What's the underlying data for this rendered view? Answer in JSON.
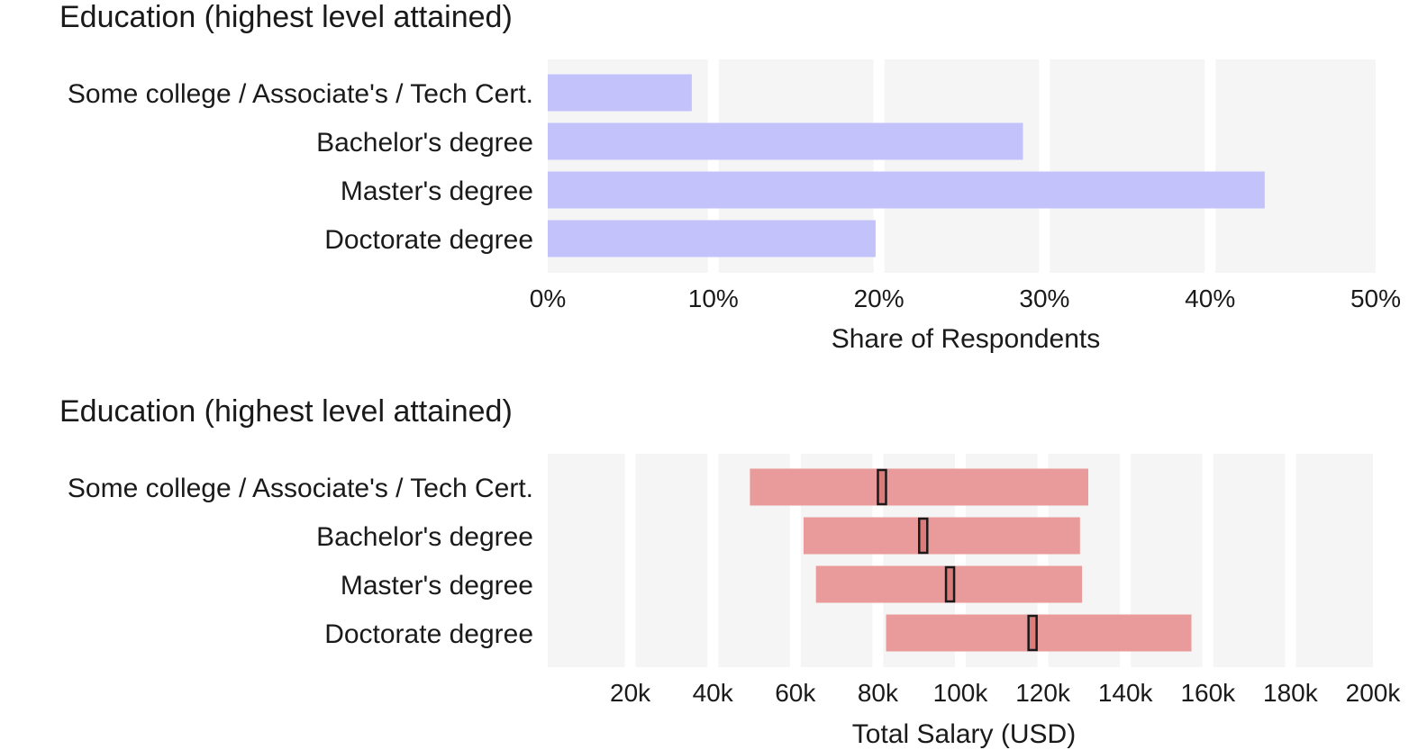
{
  "chart_data": [
    {
      "type": "bar",
      "title": "Education (highest level attained)",
      "xlabel": "Share of Respondents",
      "ylabel": "",
      "orientation": "horizontal",
      "categories": [
        "Some college / Associate's / Tech Cert.",
        "Bachelor's degree",
        "Master's degree",
        "Doctorate degree"
      ],
      "values": [
        8.7,
        28.7,
        43.3,
        19.8
      ],
      "value_unit": "%",
      "xlim": [
        0,
        50
      ],
      "ticks": [
        0,
        10,
        20,
        30,
        40,
        50
      ],
      "tick_labels": [
        "0%",
        "10%",
        "20%",
        "30%",
        "40%",
        "50%"
      ],
      "color": "#c4c2fb",
      "grid": "vertical bands",
      "legend": "none"
    },
    {
      "type": "range",
      "title": "Education (highest level attained)",
      "xlabel": "Total Salary (USD)",
      "ylabel": "",
      "orientation": "horizontal",
      "categories": [
        "Some college / Associate's / Tech Cert.",
        "Bachelor's degree",
        "Master's degree",
        "Doctorate degree"
      ],
      "low": [
        49000,
        62000,
        65000,
        82000
      ],
      "median": [
        81000,
        91000,
        97500,
        117500
      ],
      "high": [
        131000,
        129000,
        129500,
        156000
      ],
      "xlim": [
        0,
        200000
      ],
      "ticks": [
        20000,
        40000,
        60000,
        80000,
        100000,
        120000,
        140000,
        160000,
        180000,
        200000
      ],
      "tick_labels": [
        "20k",
        "40k",
        "60k",
        "80k",
        "100k",
        "120k",
        "140k",
        "160k",
        "180k",
        "200k"
      ],
      "color": "#e99a9a",
      "median_color": "#1a1a1a",
      "grid": "vertical bands",
      "legend": "none"
    }
  ]
}
